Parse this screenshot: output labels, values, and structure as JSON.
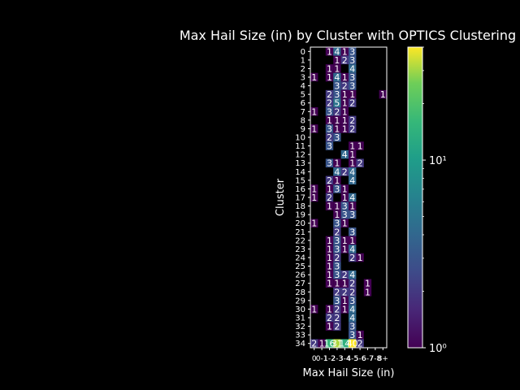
{
  "chart_data": {
    "type": "heatmap",
    "title": "Max Hail Size (in) by Cluster with OPTICS Clustering",
    "xlabel": "Max Hail Size (in)",
    "ylabel": "Cluster",
    "x_categories": [
      "0",
      "0-1",
      "1-2",
      "2-3",
      "3-4",
      "4-5",
      "5-6",
      "6-7",
      "7-8",
      "8+"
    ],
    "x_tick_labels": [
      "0",
      "0-1",
      "1-2",
      "2-3",
      "3-4",
      "4-5",
      "5-6",
      "6-7",
      "7-8",
      "8+"
    ],
    "y_categories": [
      "0",
      "1",
      "2",
      "3",
      "4",
      "5",
      "6",
      "7",
      "8",
      "9",
      "10",
      "11",
      "12",
      "13",
      "14",
      "15",
      "16",
      "17",
      "18",
      "19",
      "20",
      "21",
      "22",
      "23",
      "24",
      "25",
      "26",
      "27",
      "28",
      "29",
      "30",
      "31",
      "32",
      "33",
      "34"
    ],
    "color_scale": "log",
    "colormap": "viridis",
    "colorbar_range": [
      1,
      40
    ],
    "colorbar_ticks": [
      "10⁰",
      "10¹"
    ],
    "values": [
      [
        0,
        0,
        1,
        4,
        1,
        3,
        0,
        0,
        0,
        0
      ],
      [
        0,
        0,
        0,
        1,
        2,
        3,
        0,
        0,
        0,
        0
      ],
      [
        0,
        0,
        1,
        1,
        0,
        4,
        0,
        0,
        0,
        0
      ],
      [
        1,
        0,
        1,
        4,
        1,
        3,
        0,
        0,
        0,
        0
      ],
      [
        0,
        0,
        0,
        3,
        2,
        3,
        0,
        0,
        0,
        0
      ],
      [
        0,
        0,
        2,
        3,
        1,
        1,
        0,
        0,
        0,
        1
      ],
      [
        0,
        0,
        2,
        5,
        1,
        2,
        0,
        0,
        0,
        0
      ],
      [
        1,
        0,
        3,
        2,
        1,
        0,
        0,
        0,
        0,
        0
      ],
      [
        0,
        0,
        1,
        1,
        1,
        2,
        0,
        0,
        0,
        0
      ],
      [
        1,
        0,
        3,
        1,
        1,
        2,
        0,
        0,
        0,
        0
      ],
      [
        0,
        0,
        2,
        3,
        0,
        0,
        0,
        0,
        0,
        0
      ],
      [
        0,
        0,
        3,
        0,
        0,
        1,
        1,
        0,
        0,
        0
      ],
      [
        0,
        0,
        0,
        0,
        4,
        1,
        0,
        0,
        0,
        0
      ],
      [
        0,
        0,
        3,
        1,
        0,
        1,
        2,
        0,
        0,
        0
      ],
      [
        0,
        0,
        0,
        4,
        2,
        4,
        0,
        0,
        0,
        0
      ],
      [
        0,
        0,
        2,
        1,
        0,
        4,
        0,
        0,
        0,
        0
      ],
      [
        1,
        0,
        1,
        3,
        1,
        0,
        0,
        0,
        0,
        0
      ],
      [
        1,
        0,
        2,
        0,
        1,
        4,
        0,
        0,
        0,
        0
      ],
      [
        0,
        0,
        1,
        1,
        3,
        1,
        0,
        0,
        0,
        0
      ],
      [
        0,
        0,
        0,
        1,
        3,
        3,
        0,
        0,
        0,
        0
      ],
      [
        1,
        0,
        0,
        3,
        1,
        0,
        0,
        0,
        0,
        0
      ],
      [
        0,
        0,
        0,
        2,
        0,
        3,
        0,
        0,
        0,
        0
      ],
      [
        0,
        0,
        1,
        3,
        1,
        1,
        0,
        0,
        0,
        0
      ],
      [
        0,
        0,
        1,
        3,
        1,
        4,
        0,
        0,
        0,
        0
      ],
      [
        0,
        0,
        1,
        2,
        0,
        2,
        1,
        0,
        0,
        0
      ],
      [
        0,
        0,
        1,
        3,
        0,
        0,
        0,
        0,
        0,
        0
      ],
      [
        0,
        0,
        1,
        3,
        2,
        4,
        0,
        0,
        0,
        0
      ],
      [
        0,
        0,
        1,
        1,
        1,
        2,
        0,
        1,
        0,
        0
      ],
      [
        0,
        0,
        0,
        2,
        2,
        2,
        0,
        1,
        0,
        0
      ],
      [
        0,
        0,
        0,
        3,
        1,
        3,
        0,
        0,
        0,
        0
      ],
      [
        1,
        0,
        1,
        2,
        1,
        4,
        0,
        0,
        0,
        0
      ],
      [
        0,
        0,
        2,
        2,
        0,
        4,
        0,
        0,
        0,
        0
      ],
      [
        0,
        0,
        1,
        2,
        0,
        3,
        0,
        0,
        0,
        0
      ],
      [
        0,
        0,
        0,
        0,
        0,
        3,
        1,
        0,
        0,
        0
      ],
      [
        2,
        1,
        16,
        31,
        14,
        40,
        2,
        0,
        0,
        0
      ]
    ],
    "grid": false
  }
}
